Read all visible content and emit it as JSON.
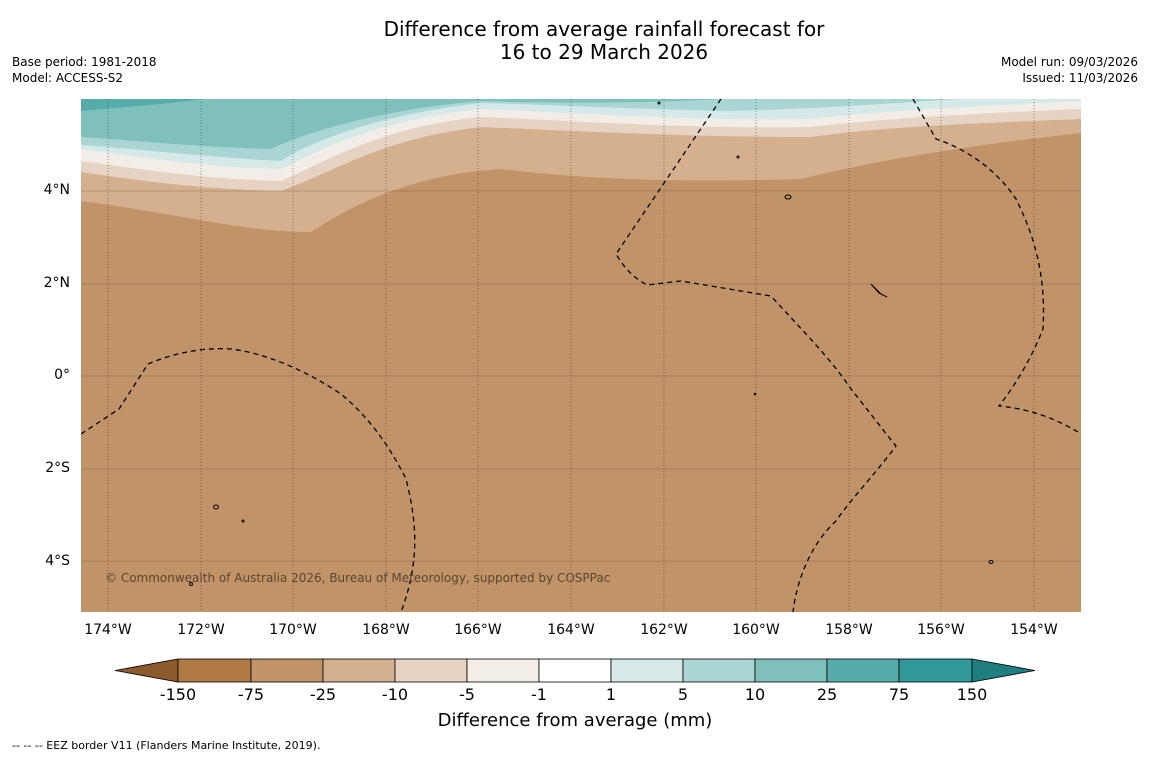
{
  "header": {
    "title_line1": "Difference from average rainfall forecast for",
    "title_line2": "16 to 29 March 2026",
    "base_period": "Base period: 1981-2018",
    "model": "Model: ACCESS-S2",
    "model_run": "Model run: 09/03/2026",
    "issued": "Issued: 11/03/2026"
  },
  "map": {
    "lat_labels": [
      "4°N",
      "2°N",
      "0°",
      "2°S",
      "4°S"
    ],
    "lon_labels": [
      "174°W",
      "172°W",
      "170°W",
      "168°W",
      "166°W",
      "164°W",
      "162°W",
      "160°W",
      "158°W",
      "156°W",
      "154°W"
    ],
    "copyright": "© Commonwealth of Australia 2026, Bureau of Meteorology, supported by COSPPac",
    "land_color": "#c09369"
  },
  "colorbar": {
    "labels": [
      "-150",
      "-75",
      "-25",
      "-10",
      "-5",
      "-1",
      "1",
      "5",
      "10",
      "25",
      "75",
      "150"
    ],
    "colors": [
      "#8c5a2c",
      "#b07a45",
      "#c09369",
      "#d4b08f",
      "#e6d3c3",
      "#f2ede6",
      "#ffffff",
      "#d5eae8",
      "#a9d5d3",
      "#7fc0bd",
      "#56aca8",
      "#31999a",
      "#1f7e7e"
    ],
    "title": "Difference from average (mm)"
  },
  "footnote": "--  --  -- EEZ border V11 (Flanders Marine Institute, 2019)."
}
